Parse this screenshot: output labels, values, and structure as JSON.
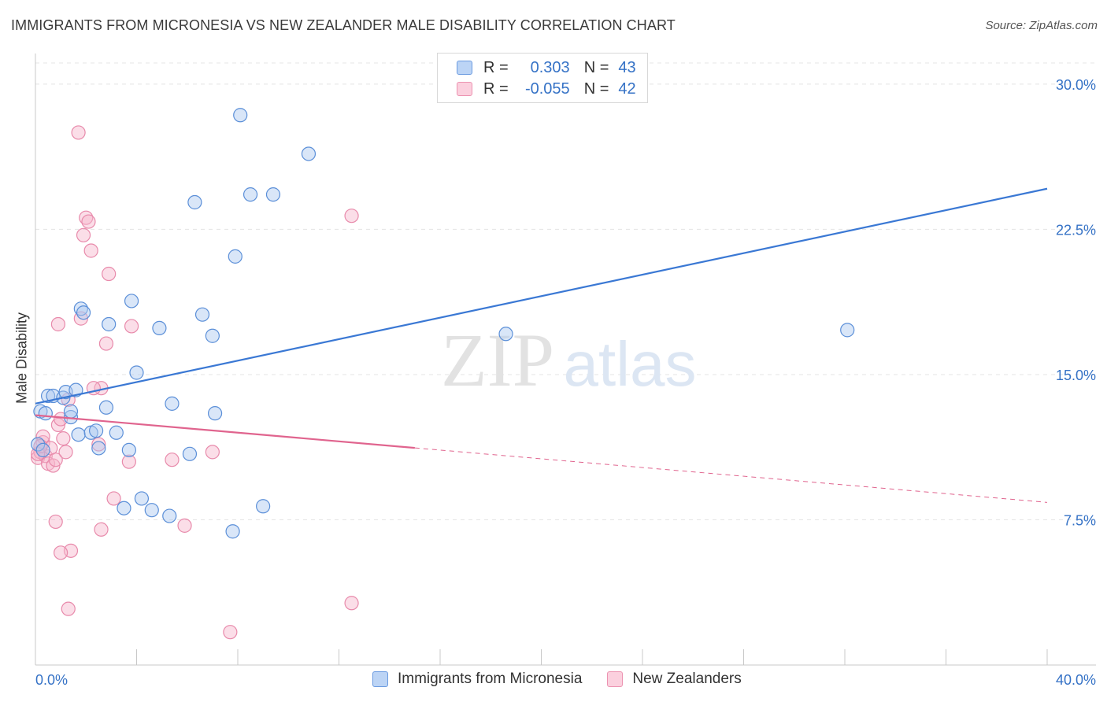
{
  "title": "IMMIGRANTS FROM MICRONESIA VS NEW ZEALANDER MALE DISABILITY CORRELATION CHART",
  "source": "Source: ZipAtlas.com",
  "watermark": {
    "zip": "ZIP",
    "atlas": "atlas"
  },
  "legend_top": {
    "rows": [
      {
        "r_label": "R =",
        "r_value": "0.303",
        "n_label": "N =",
        "n_value": "43"
      },
      {
        "r_label": "R =",
        "r_value": "-0.055",
        "n_label": "N =",
        "n_value": "42"
      }
    ]
  },
  "colors": {
    "blue": "#3a78d4",
    "blue_fill": "#aac8f0",
    "pink": "#e0648e",
    "pink_fill": "#f6b6cb",
    "grid": "#e4e4e4",
    "tick_label": "#3572c6"
  },
  "chart_data": {
    "type": "scatter",
    "title": "IMMIGRANTS FROM MICRONESIA VS NEW ZEALANDER MALE DISABILITY CORRELATION CHART",
    "xlabel": "",
    "ylabel": "Male Disability",
    "xlim": [
      0,
      40
    ],
    "ylim": [
      0,
      31.5
    ],
    "x_tick_labels": [
      "0.0%",
      "40.0%"
    ],
    "y_ticks": [
      7.5,
      15.0,
      22.5,
      30.0
    ],
    "y_tick_labels": [
      "7.5%",
      "15.0%",
      "22.5%",
      "30.0%"
    ],
    "grid": true,
    "legend_position": "bottom",
    "series": [
      {
        "name": "Immigrants from Micronesia",
        "color": "#3a78d4",
        "r": 0.303,
        "n": 43,
        "trend": {
          "x": [
            0,
            40
          ],
          "y": [
            13.5,
            24.6
          ],
          "dashed_from": null
        },
        "points": [
          [
            0.2,
            13.1
          ],
          [
            0.4,
            13.0
          ],
          [
            0.5,
            13.9
          ],
          [
            0.7,
            13.9
          ],
          [
            1.1,
            13.8
          ],
          [
            1.2,
            14.1
          ],
          [
            1.6,
            14.2
          ],
          [
            1.4,
            12.8
          ],
          [
            1.4,
            13.1
          ],
          [
            1.7,
            11.9
          ],
          [
            2.2,
            12.0
          ],
          [
            2.4,
            12.1
          ],
          [
            2.5,
            11.2
          ],
          [
            2.8,
            13.3
          ],
          [
            2.9,
            17.6
          ],
          [
            3.2,
            12.0
          ],
          [
            3.7,
            11.1
          ],
          [
            3.8,
            18.8
          ],
          [
            4.0,
            15.1
          ],
          [
            4.2,
            8.6
          ],
          [
            3.5,
            8.1
          ],
          [
            4.6,
            8.0
          ],
          [
            5.3,
            7.7
          ],
          [
            4.9,
            17.4
          ],
          [
            5.4,
            13.5
          ],
          [
            6.1,
            10.9
          ],
          [
            6.3,
            23.9
          ],
          [
            6.6,
            18.1
          ],
          [
            7.0,
            17.0
          ],
          [
            7.1,
            13.0
          ],
          [
            7.8,
            6.9
          ],
          [
            7.9,
            21.1
          ],
          [
            8.1,
            28.4
          ],
          [
            8.5,
            24.3
          ],
          [
            9.0,
            8.2
          ],
          [
            9.4,
            24.3
          ],
          [
            10.8,
            26.4
          ],
          [
            18.6,
            17.1
          ],
          [
            32.1,
            17.3
          ],
          [
            1.8,
            18.4
          ],
          [
            1.9,
            18.2
          ],
          [
            0.1,
            11.4
          ],
          [
            0.3,
            11.1
          ]
        ]
      },
      {
        "name": "New Zealanders",
        "color": "#e0648e",
        "r": -0.055,
        "n": 42,
        "trend": {
          "x": [
            0,
            40
          ],
          "y": [
            12.9,
            8.4
          ],
          "dashed_from": 15.0
        },
        "points": [
          [
            0.1,
            10.7
          ],
          [
            0.2,
            11.0
          ],
          [
            0.3,
            11.5
          ],
          [
            0.3,
            11.8
          ],
          [
            0.4,
            10.8
          ],
          [
            0.5,
            10.4
          ],
          [
            0.6,
            11.2
          ],
          [
            0.7,
            10.3
          ],
          [
            0.8,
            10.6
          ],
          [
            0.9,
            12.4
          ],
          [
            1.0,
            12.7
          ],
          [
            1.1,
            11.7
          ],
          [
            1.2,
            11.0
          ],
          [
            1.3,
            13.7
          ],
          [
            1.4,
            5.9
          ],
          [
            1.3,
            2.9
          ],
          [
            0.8,
            7.4
          ],
          [
            1.0,
            5.8
          ],
          [
            1.7,
            27.5
          ],
          [
            1.8,
            17.9
          ],
          [
            1.9,
            22.2
          ],
          [
            2.0,
            23.1
          ],
          [
            2.1,
            22.9
          ],
          [
            2.2,
            21.4
          ],
          [
            2.5,
            11.4
          ],
          [
            2.6,
            7.0
          ],
          [
            2.6,
            14.3
          ],
          [
            2.8,
            16.6
          ],
          [
            2.9,
            20.2
          ],
          [
            3.1,
            8.6
          ],
          [
            3.7,
            10.5
          ],
          [
            3.8,
            17.5
          ],
          [
            5.4,
            10.6
          ],
          [
            5.9,
            7.2
          ],
          [
            7.0,
            11.0
          ],
          [
            7.7,
            1.7
          ],
          [
            12.5,
            3.2
          ],
          [
            12.5,
            23.2
          ],
          [
            0.9,
            17.6
          ],
          [
            2.3,
            14.3
          ],
          [
            0.1,
            10.9
          ],
          [
            0.2,
            11.3
          ]
        ]
      }
    ]
  }
}
